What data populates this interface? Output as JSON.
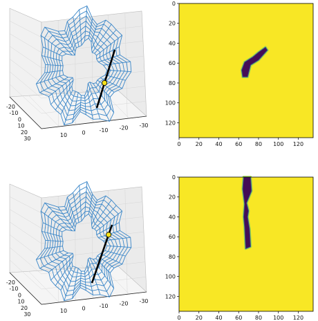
{
  "chart_data": [
    {
      "type": "3d-wireframe",
      "panel": "top-left",
      "series": [
        {
          "type": "wireframe-surface",
          "color": "#3a86c8"
        },
        {
          "type": "line",
          "color": "#000000"
        },
        {
          "type": "point",
          "color": "#f5e11a"
        }
      ],
      "x_ticks": [
        "10",
        "0",
        "-10",
        "-20",
        "-30"
      ],
      "y_ticks": [
        "-20",
        "-10",
        "0",
        "10",
        "20",
        "30"
      ],
      "grid": true
    },
    {
      "type": "heatmap",
      "panel": "top-right",
      "colormap": "viridis",
      "background_color": "#f8e725",
      "blob_color": "#440e56",
      "xlim": [
        0,
        135
      ],
      "ylim": [
        135,
        0
      ],
      "x_ticks": [
        "0",
        "20",
        "40",
        "60",
        "80",
        "100",
        "120"
      ],
      "y_ticks": [
        "0",
        "20",
        "40",
        "60",
        "80",
        "100",
        "120"
      ],
      "blob_path": [
        [
          63,
          67
        ],
        [
          66,
          59
        ],
        [
          74,
          54
        ],
        [
          80,
          49
        ],
        [
          87,
          44
        ],
        [
          89,
          47
        ],
        [
          80,
          57
        ],
        [
          72,
          62
        ],
        [
          69,
          74
        ],
        [
          64,
          74
        ]
      ]
    },
    {
      "type": "3d-wireframe",
      "panel": "bottom-left",
      "series": [
        {
          "type": "wireframe-surface",
          "color": "#3a86c8"
        },
        {
          "type": "line",
          "color": "#000000"
        },
        {
          "type": "point",
          "color": "#f5e11a"
        }
      ],
      "x_ticks": [
        "10",
        "0",
        "-10",
        "-20",
        "-30"
      ],
      "y_ticks": [
        "-20",
        "-10",
        "0",
        "10",
        "20",
        "30"
      ],
      "grid": true
    },
    {
      "type": "heatmap",
      "panel": "bottom-right",
      "colormap": "viridis",
      "background_color": "#f8e725",
      "blob_color": "#440e56",
      "xlim": [
        0,
        135
      ],
      "ylim": [
        135,
        0
      ],
      "x_ticks": [
        "0",
        "20",
        "40",
        "60",
        "80",
        "100",
        "120"
      ],
      "y_ticks": [
        "0",
        "20",
        "40",
        "60",
        "80",
        "100",
        "120"
      ],
      "blob_path": [
        [
          65,
          0
        ],
        [
          72,
          0
        ],
        [
          73,
          14
        ],
        [
          68,
          26
        ],
        [
          70,
          34
        ],
        [
          69,
          40
        ],
        [
          71,
          52
        ],
        [
          72,
          70
        ],
        [
          67,
          72
        ],
        [
          66,
          50
        ],
        [
          65,
          40
        ],
        [
          66,
          27
        ],
        [
          64,
          12
        ]
      ]
    }
  ]
}
